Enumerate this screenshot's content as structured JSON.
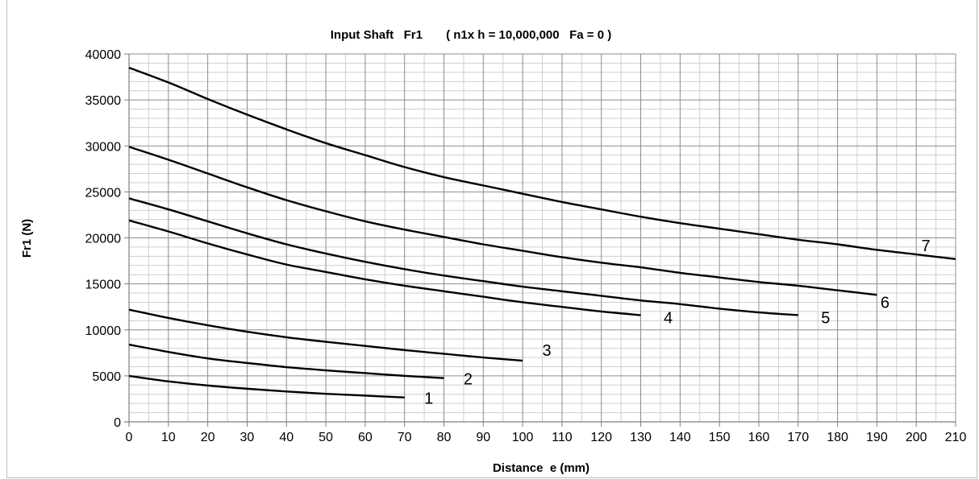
{
  "chart_data": {
    "type": "line",
    "title": "Input Shaft   Fr1       ( n1x h = 10,000,000   Fa = 0 )",
    "xlabel": "Distance  e (mm)",
    "ylabel": "Fr1 (N)",
    "xlim": [
      0,
      210
    ],
    "ylim": [
      0,
      40000
    ],
    "xticks": [
      0,
      10,
      20,
      30,
      40,
      50,
      60,
      70,
      80,
      90,
      100,
      110,
      120,
      130,
      140,
      150,
      160,
      170,
      180,
      190,
      200,
      210
    ],
    "yticks": [
      0,
      5000,
      10000,
      15000,
      20000,
      25000,
      30000,
      35000,
      40000
    ],
    "x_minor_step": 5,
    "y_minor_step": 1000,
    "grid": true,
    "legend": "none",
    "line_color": "#000000",
    "series": [
      {
        "label": "1",
        "x": [
          0,
          10,
          20,
          30,
          40,
          50,
          60,
          70
        ],
        "y": [
          5000,
          4400,
          3950,
          3600,
          3300,
          3050,
          2850,
          2650
        ]
      },
      {
        "label": "2",
        "x": [
          0,
          10,
          20,
          30,
          40,
          50,
          60,
          70,
          80
        ],
        "y": [
          8400,
          7600,
          6900,
          6400,
          5950,
          5600,
          5300,
          5000,
          4750
        ]
      },
      {
        "label": "3",
        "x": [
          0,
          10,
          20,
          30,
          40,
          50,
          60,
          70,
          80,
          90,
          100
        ],
        "y": [
          12200,
          11300,
          10500,
          9800,
          9200,
          8700,
          8250,
          7800,
          7400,
          7000,
          6650
        ]
      },
      {
        "label": "4",
        "x": [
          0,
          10,
          20,
          30,
          40,
          50,
          60,
          70,
          80,
          90,
          100,
          110,
          120,
          130
        ],
        "y": [
          21900,
          20700,
          19400,
          18200,
          17100,
          16300,
          15500,
          14800,
          14200,
          13600,
          13000,
          12500,
          12000,
          11600
        ]
      },
      {
        "label": "5",
        "x": [
          0,
          10,
          20,
          30,
          40,
          50,
          60,
          70,
          80,
          90,
          100,
          110,
          120,
          130,
          140,
          150,
          160,
          170
        ],
        "y": [
          24300,
          23100,
          21800,
          20500,
          19300,
          18300,
          17400,
          16600,
          15900,
          15300,
          14700,
          14200,
          13700,
          13200,
          12800,
          12300,
          11900,
          11600
        ]
      },
      {
        "label": "6",
        "x": [
          0,
          10,
          20,
          30,
          40,
          50,
          60,
          70,
          80,
          90,
          100,
          110,
          120,
          130,
          140,
          150,
          160,
          170,
          180,
          190
        ],
        "y": [
          29900,
          28500,
          27000,
          25500,
          24100,
          22900,
          21800,
          20900,
          20100,
          19300,
          18600,
          17900,
          17300,
          16800,
          16200,
          15700,
          15200,
          14800,
          14300,
          13800
        ]
      },
      {
        "label": "7",
        "x": [
          0,
          10,
          20,
          30,
          40,
          50,
          60,
          70,
          80,
          90,
          100,
          110,
          120,
          130,
          140,
          150,
          160,
          170,
          180,
          190,
          200,
          210
        ],
        "y": [
          38500,
          36900,
          35100,
          33400,
          31800,
          30300,
          29000,
          27700,
          26600,
          25700,
          24800,
          23900,
          23100,
          22300,
          21600,
          21000,
          20400,
          19800,
          19300,
          18700,
          18200,
          17700
        ]
      }
    ]
  }
}
